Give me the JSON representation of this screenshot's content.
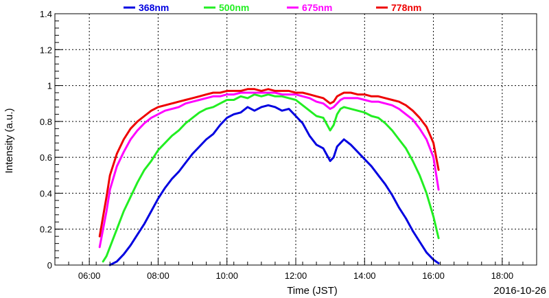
{
  "chart_data": {
    "type": "line",
    "xlabel": "Time (JST)",
    "ylabel": "Intensity (a.u.)",
    "date": "2016-10-26",
    "xlim": [
      5.0,
      19.0
    ],
    "ylim": [
      0,
      1.4
    ],
    "x_ticks": [
      6,
      8,
      10,
      12,
      14,
      16,
      18
    ],
    "x_tick_labels": [
      "06:00",
      "08:00",
      "10:00",
      "12:00",
      "14:00",
      "16:00",
      "18:00"
    ],
    "y_ticks": [
      0,
      0.2,
      0.4,
      0.6,
      0.8,
      1,
      1.2,
      1.4
    ],
    "y_tick_labels": [
      "0",
      "0.2",
      "0.4",
      "0.6",
      "0.8",
      "1",
      "1.2",
      "1.4"
    ],
    "grid": true,
    "legend_position": "top",
    "series": [
      {
        "name": "368nm",
        "color": "#0000e0",
        "x": [
          6.6,
          6.8,
          7.0,
          7.2,
          7.4,
          7.6,
          7.8,
          8.0,
          8.2,
          8.4,
          8.6,
          8.8,
          9.0,
          9.2,
          9.4,
          9.6,
          9.8,
          10.0,
          10.2,
          10.4,
          10.6,
          10.8,
          11.0,
          11.2,
          11.4,
          11.6,
          11.8,
          12.0,
          12.2,
          12.4,
          12.6,
          12.8,
          13.0,
          13.1,
          13.2,
          13.3,
          13.4,
          13.6,
          13.8,
          14.0,
          14.2,
          14.4,
          14.6,
          14.8,
          15.0,
          15.2,
          15.4,
          15.6,
          15.8,
          16.0,
          16.15
        ],
        "y": [
          0.0,
          0.02,
          0.06,
          0.11,
          0.17,
          0.23,
          0.3,
          0.37,
          0.43,
          0.48,
          0.52,
          0.57,
          0.62,
          0.66,
          0.7,
          0.73,
          0.78,
          0.82,
          0.84,
          0.85,
          0.88,
          0.86,
          0.88,
          0.89,
          0.88,
          0.86,
          0.87,
          0.83,
          0.79,
          0.72,
          0.67,
          0.65,
          0.58,
          0.6,
          0.66,
          0.68,
          0.7,
          0.67,
          0.63,
          0.59,
          0.55,
          0.5,
          0.45,
          0.39,
          0.32,
          0.26,
          0.19,
          0.13,
          0.07,
          0.03,
          0.01
        ]
      },
      {
        "name": "500nm",
        "color": "#22ee22",
        "x": [
          6.4,
          6.5,
          6.6,
          6.8,
          7.0,
          7.2,
          7.4,
          7.6,
          7.8,
          8.0,
          8.2,
          8.4,
          8.6,
          8.8,
          9.0,
          9.2,
          9.4,
          9.6,
          9.8,
          10.0,
          10.2,
          10.4,
          10.6,
          10.8,
          11.0,
          11.2,
          11.4,
          11.6,
          11.8,
          12.0,
          12.2,
          12.4,
          12.6,
          12.8,
          13.0,
          13.1,
          13.2,
          13.3,
          13.4,
          13.6,
          13.8,
          14.0,
          14.2,
          14.4,
          14.6,
          14.8,
          15.0,
          15.2,
          15.4,
          15.6,
          15.8,
          16.0,
          16.15
        ],
        "y": [
          0.02,
          0.05,
          0.1,
          0.2,
          0.3,
          0.38,
          0.46,
          0.53,
          0.58,
          0.64,
          0.68,
          0.72,
          0.75,
          0.79,
          0.82,
          0.85,
          0.87,
          0.88,
          0.9,
          0.92,
          0.92,
          0.94,
          0.93,
          0.95,
          0.94,
          0.95,
          0.94,
          0.94,
          0.93,
          0.92,
          0.89,
          0.86,
          0.83,
          0.82,
          0.75,
          0.78,
          0.84,
          0.87,
          0.88,
          0.87,
          0.86,
          0.85,
          0.83,
          0.82,
          0.79,
          0.75,
          0.7,
          0.65,
          0.58,
          0.5,
          0.4,
          0.27,
          0.15
        ]
      },
      {
        "name": "675nm",
        "color": "#ff00ff",
        "x": [
          6.3,
          6.4,
          6.5,
          6.6,
          6.8,
          7.0,
          7.2,
          7.4,
          7.6,
          7.8,
          8.0,
          8.2,
          8.4,
          8.6,
          8.8,
          9.0,
          9.2,
          9.4,
          9.6,
          9.8,
          10.0,
          10.2,
          10.4,
          10.6,
          10.8,
          11.0,
          11.2,
          11.4,
          11.6,
          11.8,
          12.0,
          12.2,
          12.4,
          12.6,
          12.8,
          13.0,
          13.1,
          13.2,
          13.3,
          13.4,
          13.6,
          13.8,
          14.0,
          14.2,
          14.4,
          14.6,
          14.8,
          15.0,
          15.2,
          15.4,
          15.6,
          15.8,
          16.0,
          16.15
        ],
        "y": [
          0.1,
          0.2,
          0.3,
          0.42,
          0.55,
          0.63,
          0.7,
          0.75,
          0.79,
          0.82,
          0.84,
          0.86,
          0.87,
          0.88,
          0.9,
          0.91,
          0.92,
          0.93,
          0.94,
          0.94,
          0.95,
          0.95,
          0.96,
          0.96,
          0.96,
          0.96,
          0.96,
          0.96,
          0.95,
          0.95,
          0.95,
          0.94,
          0.93,
          0.91,
          0.9,
          0.87,
          0.88,
          0.9,
          0.92,
          0.93,
          0.93,
          0.93,
          0.92,
          0.91,
          0.91,
          0.9,
          0.89,
          0.87,
          0.84,
          0.81,
          0.76,
          0.7,
          0.6,
          0.42
        ]
      },
      {
        "name": "778nm",
        "color": "#ee0000",
        "x": [
          6.3,
          6.4,
          6.5,
          6.6,
          6.8,
          7.0,
          7.2,
          7.4,
          7.6,
          7.8,
          8.0,
          8.2,
          8.4,
          8.6,
          8.8,
          9.0,
          9.2,
          9.4,
          9.6,
          9.8,
          10.0,
          10.2,
          10.4,
          10.6,
          10.8,
          11.0,
          11.2,
          11.4,
          11.6,
          11.8,
          12.0,
          12.2,
          12.4,
          12.6,
          12.8,
          13.0,
          13.1,
          13.2,
          13.3,
          13.4,
          13.6,
          13.8,
          14.0,
          14.2,
          14.4,
          14.6,
          14.8,
          15.0,
          15.2,
          15.4,
          15.6,
          15.8,
          16.0,
          16.15
        ],
        "y": [
          0.16,
          0.27,
          0.38,
          0.5,
          0.62,
          0.7,
          0.76,
          0.8,
          0.83,
          0.86,
          0.88,
          0.89,
          0.9,
          0.91,
          0.92,
          0.93,
          0.94,
          0.95,
          0.96,
          0.96,
          0.97,
          0.97,
          0.97,
          0.98,
          0.98,
          0.97,
          0.98,
          0.97,
          0.97,
          0.97,
          0.96,
          0.96,
          0.95,
          0.94,
          0.93,
          0.9,
          0.91,
          0.94,
          0.95,
          0.96,
          0.96,
          0.95,
          0.95,
          0.94,
          0.94,
          0.93,
          0.92,
          0.91,
          0.89,
          0.86,
          0.82,
          0.77,
          0.68,
          0.53
        ]
      }
    ]
  }
}
